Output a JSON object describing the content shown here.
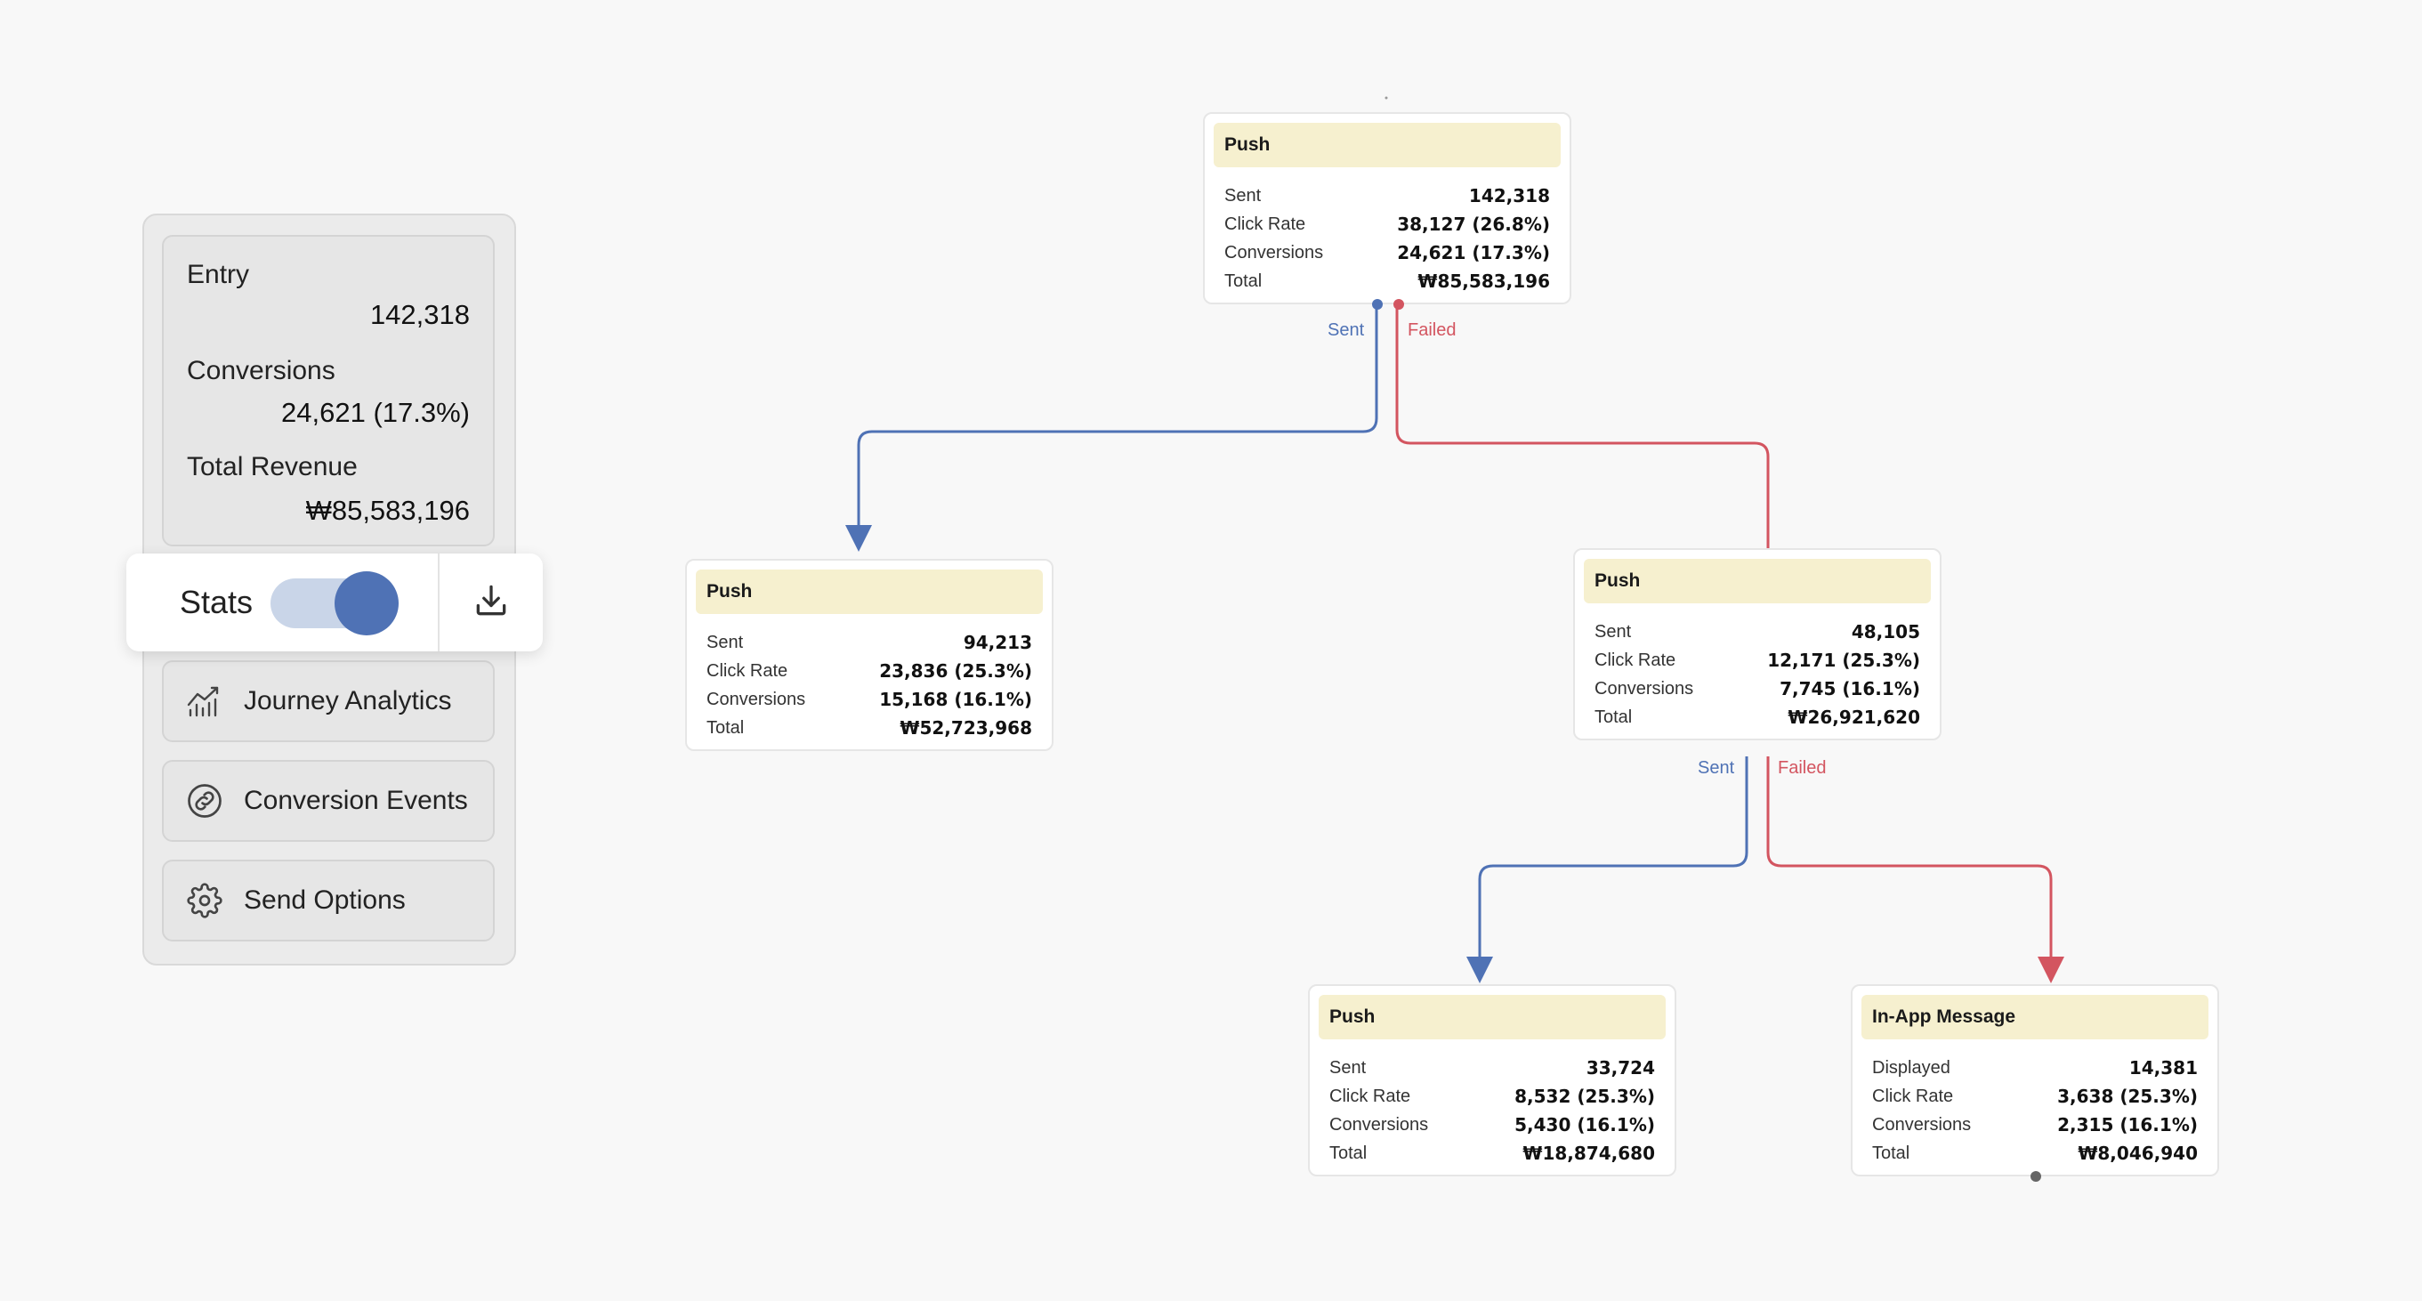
{
  "summary": {
    "entry_label": "Entry",
    "entry_value": "142,318",
    "conversions_label": "Conversions",
    "conversions_value": "24,621 (17.3%)",
    "revenue_label": "Total Revenue",
    "revenue_value": "₩85,583,196"
  },
  "stats_toggle": {
    "label": "Stats",
    "enabled": true
  },
  "menu": [
    {
      "label": "Journey Analytics",
      "icon": "analytics-chart-icon"
    },
    {
      "label": "Conversion Events",
      "icon": "link-icon"
    },
    {
      "label": "Send Options",
      "icon": "gear-icon"
    }
  ],
  "colors": {
    "sent": "#4f72b5",
    "failed": "#d35560",
    "node_header": "#f6f0cf",
    "accent": "#4f72b5"
  },
  "edges": {
    "sent_label": "Sent",
    "failed_label": "Failed"
  },
  "nodes": [
    {
      "title": "Push",
      "rows": [
        {
          "label": "Sent",
          "value": "142,318"
        },
        {
          "label": "Click Rate",
          "value": "38,127 (26.8%)"
        },
        {
          "label": "Conversions",
          "value": "24,621 (17.3%)"
        },
        {
          "label": "Total",
          "value": "₩85,583,196"
        }
      ]
    },
    {
      "title": "Push",
      "rows": [
        {
          "label": "Sent",
          "value": "94,213"
        },
        {
          "label": "Click Rate",
          "value": "23,836 (25.3%)"
        },
        {
          "label": "Conversions",
          "value": "15,168 (16.1%)"
        },
        {
          "label": "Total",
          "value": "₩52,723,968"
        }
      ]
    },
    {
      "title": "Push",
      "rows": [
        {
          "label": "Sent",
          "value": "48,105"
        },
        {
          "label": "Click Rate",
          "value": "12,171 (25.3%)"
        },
        {
          "label": "Conversions",
          "value": "7,745 (16.1%)"
        },
        {
          "label": "Total",
          "value": "₩26,921,620"
        }
      ]
    },
    {
      "title": "Push",
      "rows": [
        {
          "label": "Sent",
          "value": "33,724"
        },
        {
          "label": "Click Rate",
          "value": "8,532 (25.3%)"
        },
        {
          "label": "Conversions",
          "value": "5,430 (16.1%)"
        },
        {
          "label": "Total",
          "value": "₩18,874,680"
        }
      ]
    },
    {
      "title": "In-App Message",
      "rows": [
        {
          "label": "Displayed",
          "value": "14,381"
        },
        {
          "label": "Click Rate",
          "value": "3,638 (25.3%)"
        },
        {
          "label": "Conversions",
          "value": "2,315 (16.1%)"
        },
        {
          "label": "Total",
          "value": "₩8,046,940"
        }
      ]
    }
  ]
}
